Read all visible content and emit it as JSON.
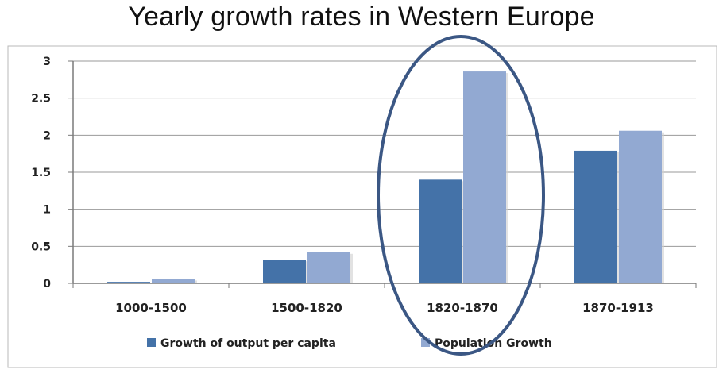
{
  "title": "Yearly growth rates in Western Europe",
  "chart_data": {
    "type": "bar",
    "categories": [
      "1000-1500",
      "1500-1820",
      "1820-1870",
      "1870-1913"
    ],
    "series": [
      {
        "name": "Growth of output per capita",
        "values": [
          0.02,
          0.32,
          1.4,
          1.79
        ],
        "color": "#4472a8"
      },
      {
        "name": "Population Growth",
        "values": [
          0.06,
          0.42,
          2.86,
          2.06
        ],
        "color": "#92a9d2"
      }
    ],
    "y_ticks": [
      "0",
      "0.5",
      "1",
      "1.5",
      "2",
      "2.5",
      "3"
    ],
    "ylim": [
      0,
      3
    ],
    "grid": true,
    "legend_position": "bottom",
    "highlight": {
      "category": "1820-1870",
      "shape": "ellipse",
      "color": "#3b5784"
    }
  }
}
